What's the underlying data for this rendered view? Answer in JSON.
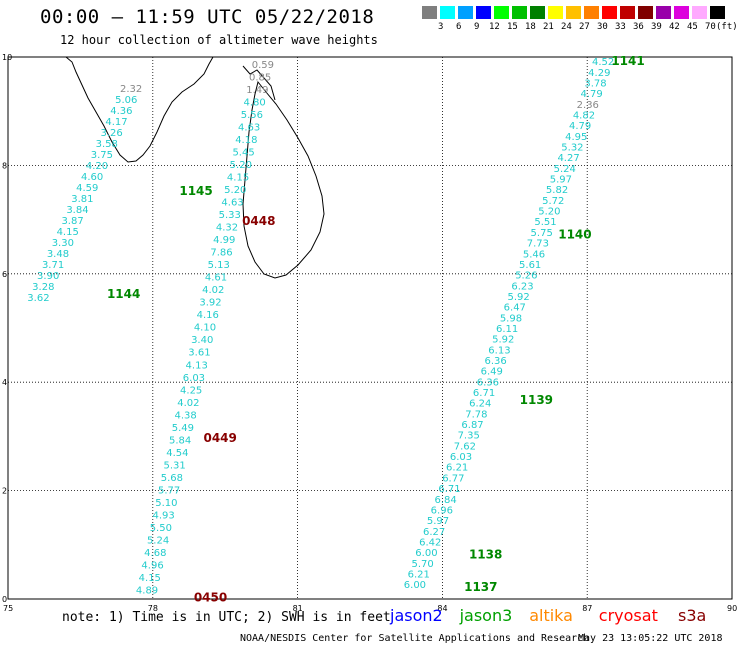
{
  "header": {
    "title": "00:00 – 11:59 UTC 05/22/2018",
    "subtitle": "12 hour collection of altimeter wave heights"
  },
  "legend": {
    "unit": "(ft)",
    "bins": [
      {
        "label": "",
        "color": "#7f7f7f"
      },
      {
        "label": "3",
        "color": "#00ffff"
      },
      {
        "label": "6",
        "color": "#00a0ff"
      },
      {
        "label": "9",
        "color": "#0000ff"
      },
      {
        "label": "12",
        "color": "#00ff00"
      },
      {
        "label": "15",
        "color": "#00c000"
      },
      {
        "label": "18",
        "color": "#008000"
      },
      {
        "label": "21",
        "color": "#ffff00"
      },
      {
        "label": "24",
        "color": "#ffc000"
      },
      {
        "label": "27",
        "color": "#ff8000"
      },
      {
        "label": "30",
        "color": "#ff0000"
      },
      {
        "label": "33",
        "color": "#c00000"
      },
      {
        "label": "36",
        "color": "#800000"
      },
      {
        "label": "39",
        "color": "#9900aa"
      },
      {
        "label": "42",
        "color": "#dd00dd"
      },
      {
        "label": "45",
        "color": "#ffaaff"
      },
      {
        "label": "70",
        "color": "#000000"
      }
    ]
  },
  "axes": {
    "x_ticks": [
      "75",
      "78",
      "81",
      "84",
      "87",
      "90"
    ],
    "y_ticks": [
      "0",
      "2",
      "4",
      "6",
      "8",
      "10"
    ],
    "lon_range": [
      75,
      90
    ],
    "lat_range": [
      0,
      10
    ]
  },
  "colors": {
    "wave": "#22cccc",
    "gray": "#888888",
    "jason3": "#008800",
    "time_red": "#880000"
  },
  "tracks": [
    {
      "name": "track-1144-1145",
      "start": [
        2.32,
        9.35
      ],
      "end": [
        0.4,
        5.5
      ],
      "values": [
        "2.32",
        "5.06",
        "4.36",
        "4.17",
        "3.26",
        "3.58",
        "3.75",
        "4.20",
        "4.60",
        "4.59",
        "3.81",
        "3.84",
        "3.87",
        "4.15",
        "3.30",
        "3.48",
        "3.71",
        "3.90",
        "3.28",
        "3.62"
      ],
      "gray_count": 1
    },
    {
      "name": "track-0448-0450",
      "start": [
        5.05,
        9.8
      ],
      "end": [
        2.65,
        0.1
      ],
      "values": [
        "0.59",
        "0.85",
        "1.49",
        "4.80",
        "5.56",
        "4.63",
        "4.18",
        "5.45",
        "5.20",
        "4.15",
        "5.20",
        "4.63",
        "5.33",
        "4.32",
        "4.99",
        "7.86",
        "5.13",
        "4.61",
        "4.02",
        "3.92",
        "4.16",
        "4.10",
        "3.40",
        "3.61",
        "4.13",
        "6.03",
        "4.25",
        "4.02",
        "4.38",
        "5.49",
        "5.84",
        "4.54",
        "5.31",
        "5.68",
        "5.77",
        "5.10",
        "4.93",
        "5.50",
        "5.24",
        "4.68",
        "4.96",
        "4.15",
        "4.89"
      ],
      "gray_count": 3
    },
    {
      "name": "track-1137-1141",
      "start": [
        12.1,
        9.85
      ],
      "end": [
        8.2,
        0.2
      ],
      "values": [
        "4.52",
        "4.29",
        "3.78",
        "4.79",
        "2.36",
        "4.82",
        "4.79",
        "4.95",
        "5.32",
        "4.27",
        "5.24",
        "5.97",
        "5.82",
        "5.72",
        "5.20",
        "5.51",
        "5.75",
        "7.73",
        "5.46",
        "5.61",
        "5.26",
        "6.23",
        "5.92",
        "6.47",
        "5.98",
        "6.11",
        "5.92",
        "6.13",
        "6.36",
        "6.49",
        "6.36",
        "6.71",
        "6.24",
        "7.78",
        "6.87",
        "7.35",
        "7.62",
        "6.03",
        "6.21",
        "6.77",
        "6.71",
        "6.84",
        "6.96",
        "5.97",
        "6.27",
        "6.42",
        "6.00",
        "5.70",
        "6.21",
        "6.00"
      ],
      "gray_count": 0,
      "gray_index": 4
    }
  ],
  "time_labels": [
    {
      "text": "1145",
      "lon": 78.55,
      "lat": 7.45,
      "kind": "jason3"
    },
    {
      "text": "1144",
      "lon": 77.05,
      "lat": 5.55,
      "kind": "jason3"
    },
    {
      "text": "0448",
      "lon": 79.85,
      "lat": 6.9,
      "kind": "red"
    },
    {
      "text": "0449",
      "lon": 79.05,
      "lat": 2.9,
      "kind": "red"
    },
    {
      "text": "0450",
      "lon": 78.85,
      "lat": -0.05,
      "kind": "red"
    },
    {
      "text": "1141",
      "lon": 87.5,
      "lat": 9.85,
      "kind": "jason3"
    },
    {
      "text": "1140",
      "lon": 86.4,
      "lat": 6.65,
      "kind": "jason3"
    },
    {
      "text": "1139",
      "lon": 85.6,
      "lat": 3.6,
      "kind": "jason3"
    },
    {
      "text": "1138",
      "lon": 84.55,
      "lat": 0.75,
      "kind": "jason3"
    },
    {
      "text": "1137",
      "lon": 84.45,
      "lat": 0.15,
      "kind": "jason3"
    }
  ],
  "footer": {
    "note": "note: 1) Time is in UTC; 2) SWH is in feet",
    "satellites": [
      {
        "name": "jason2",
        "color": "#0000ff"
      },
      {
        "name": "jason3",
        "color": "#00a000"
      },
      {
        "name": "altika",
        "color": "#ff8800"
      },
      {
        "name": "cryosat",
        "color": "#ff0000"
      },
      {
        "name": "s3a",
        "color": "#880000"
      }
    ],
    "credit": "NOAA/NESDIS Center for Satellite Applications and Research",
    "timestamp": "May 23 13:05:22 UTC 2018"
  }
}
